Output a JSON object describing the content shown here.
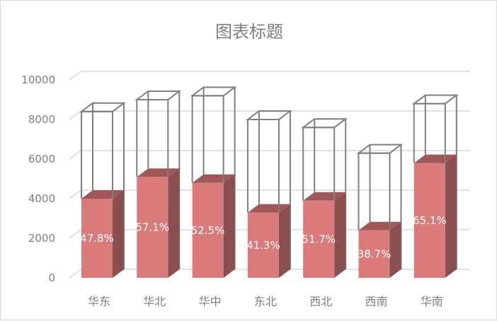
{
  "chart_data": {
    "type": "bar",
    "title": "图表标题",
    "categories": [
      "华东",
      "华北",
      "华中",
      "东北",
      "西北",
      "西南",
      "华南"
    ],
    "series": [
      {
        "values": [
          4000,
          5100,
          4800,
          3300,
          3900,
          2400,
          5800
        ]
      },
      {
        "values": [
          8400,
          9000,
          9200,
          8000,
          7600,
          6300,
          8800
        ]
      }
    ],
    "data_labels": [
      "47.8%",
      "57.1%",
      "52.5%",
      "41.3%",
      "51.7%",
      "38.7%",
      "65.1%"
    ],
    "ylim": [
      0,
      10000
    ],
    "yticks": [
      "0",
      "2000",
      "4000",
      "6000",
      "8000",
      "10000"
    ],
    "grid": true,
    "legend": "none",
    "colors": {
      "filled_front": "#d97b7b",
      "filled_side": "#8c4f4f",
      "filled_top": "#9e5858",
      "outline": "#7f7f7f",
      "grid": "#d9d9d9",
      "text": "#7f7f7f"
    }
  }
}
